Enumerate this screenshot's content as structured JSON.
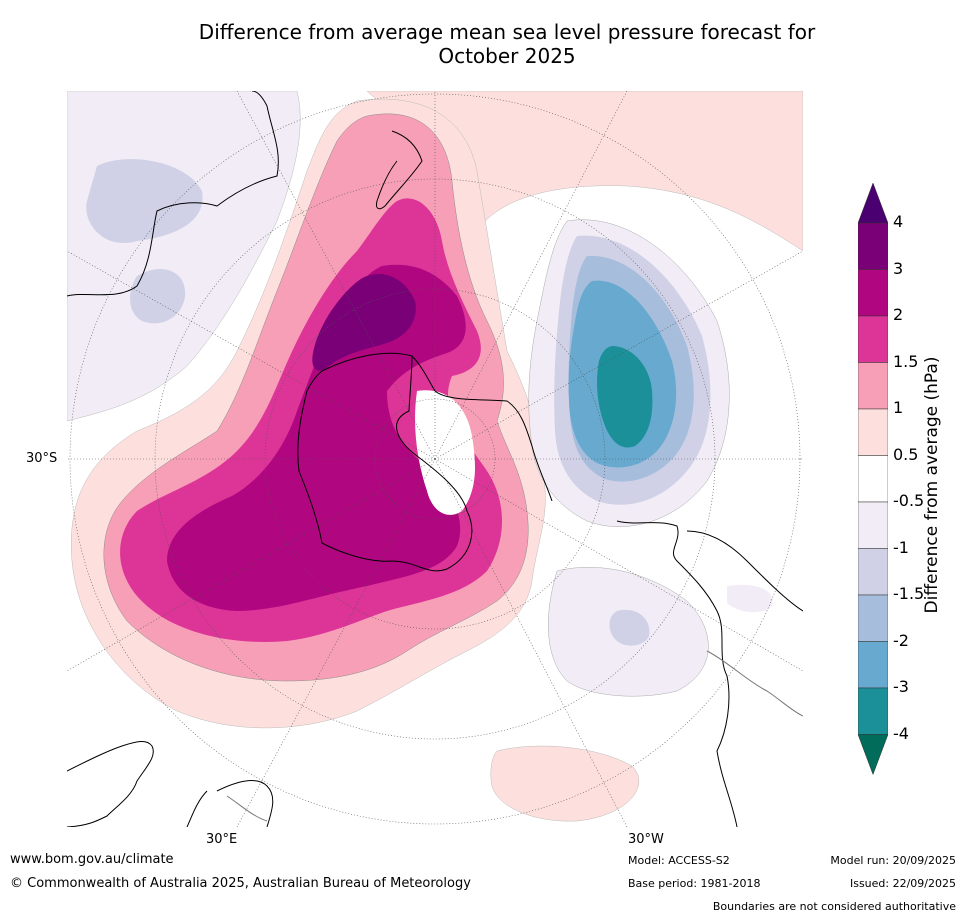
{
  "title_line1": "Difference from average mean sea level pressure forecast for",
  "title_line2": "October 2025",
  "map": {
    "lat_labels": [
      "30°S"
    ],
    "lon_labels": [
      "30°E",
      "30°W"
    ]
  },
  "legend": {
    "title": "Difference from average (hPa)",
    "tick_labels": [
      "4",
      "3",
      "2",
      "1.5",
      "1",
      "0.5",
      "-0.5",
      "-1",
      "-1.5",
      "-2",
      "-3",
      "-4"
    ],
    "colors": {
      "over": "#4a0070",
      "gt3": "#7a0078",
      "2to3": "#b0067f",
      "1.5to2": "#dd3497",
      "1to1.5": "#f89fb8",
      "0.5to1": "#fde0dd",
      "neutral": "#ffffff",
      "-1to-0.5": "#f1ecf5",
      "-1.5to-1": "#d0d1e6",
      "-2to-1.5": "#a6bddb",
      "-3to-2": "#67a9cf",
      "-4to-3": "#1c9099",
      "under": "#016c59"
    }
  },
  "footer": {
    "website": "www.bom.gov.au/climate",
    "copyright": "© Commonwealth of Australia 2025, Australian Bureau of Meteorology",
    "model": "Model: ACCESS-S2",
    "base_period": "Base period: 1981-2018",
    "model_run": "Model run: 20/09/2025",
    "issued": "Issued: 22/09/2025",
    "disclaimer": "Boundaries are not considered authoritative"
  }
}
